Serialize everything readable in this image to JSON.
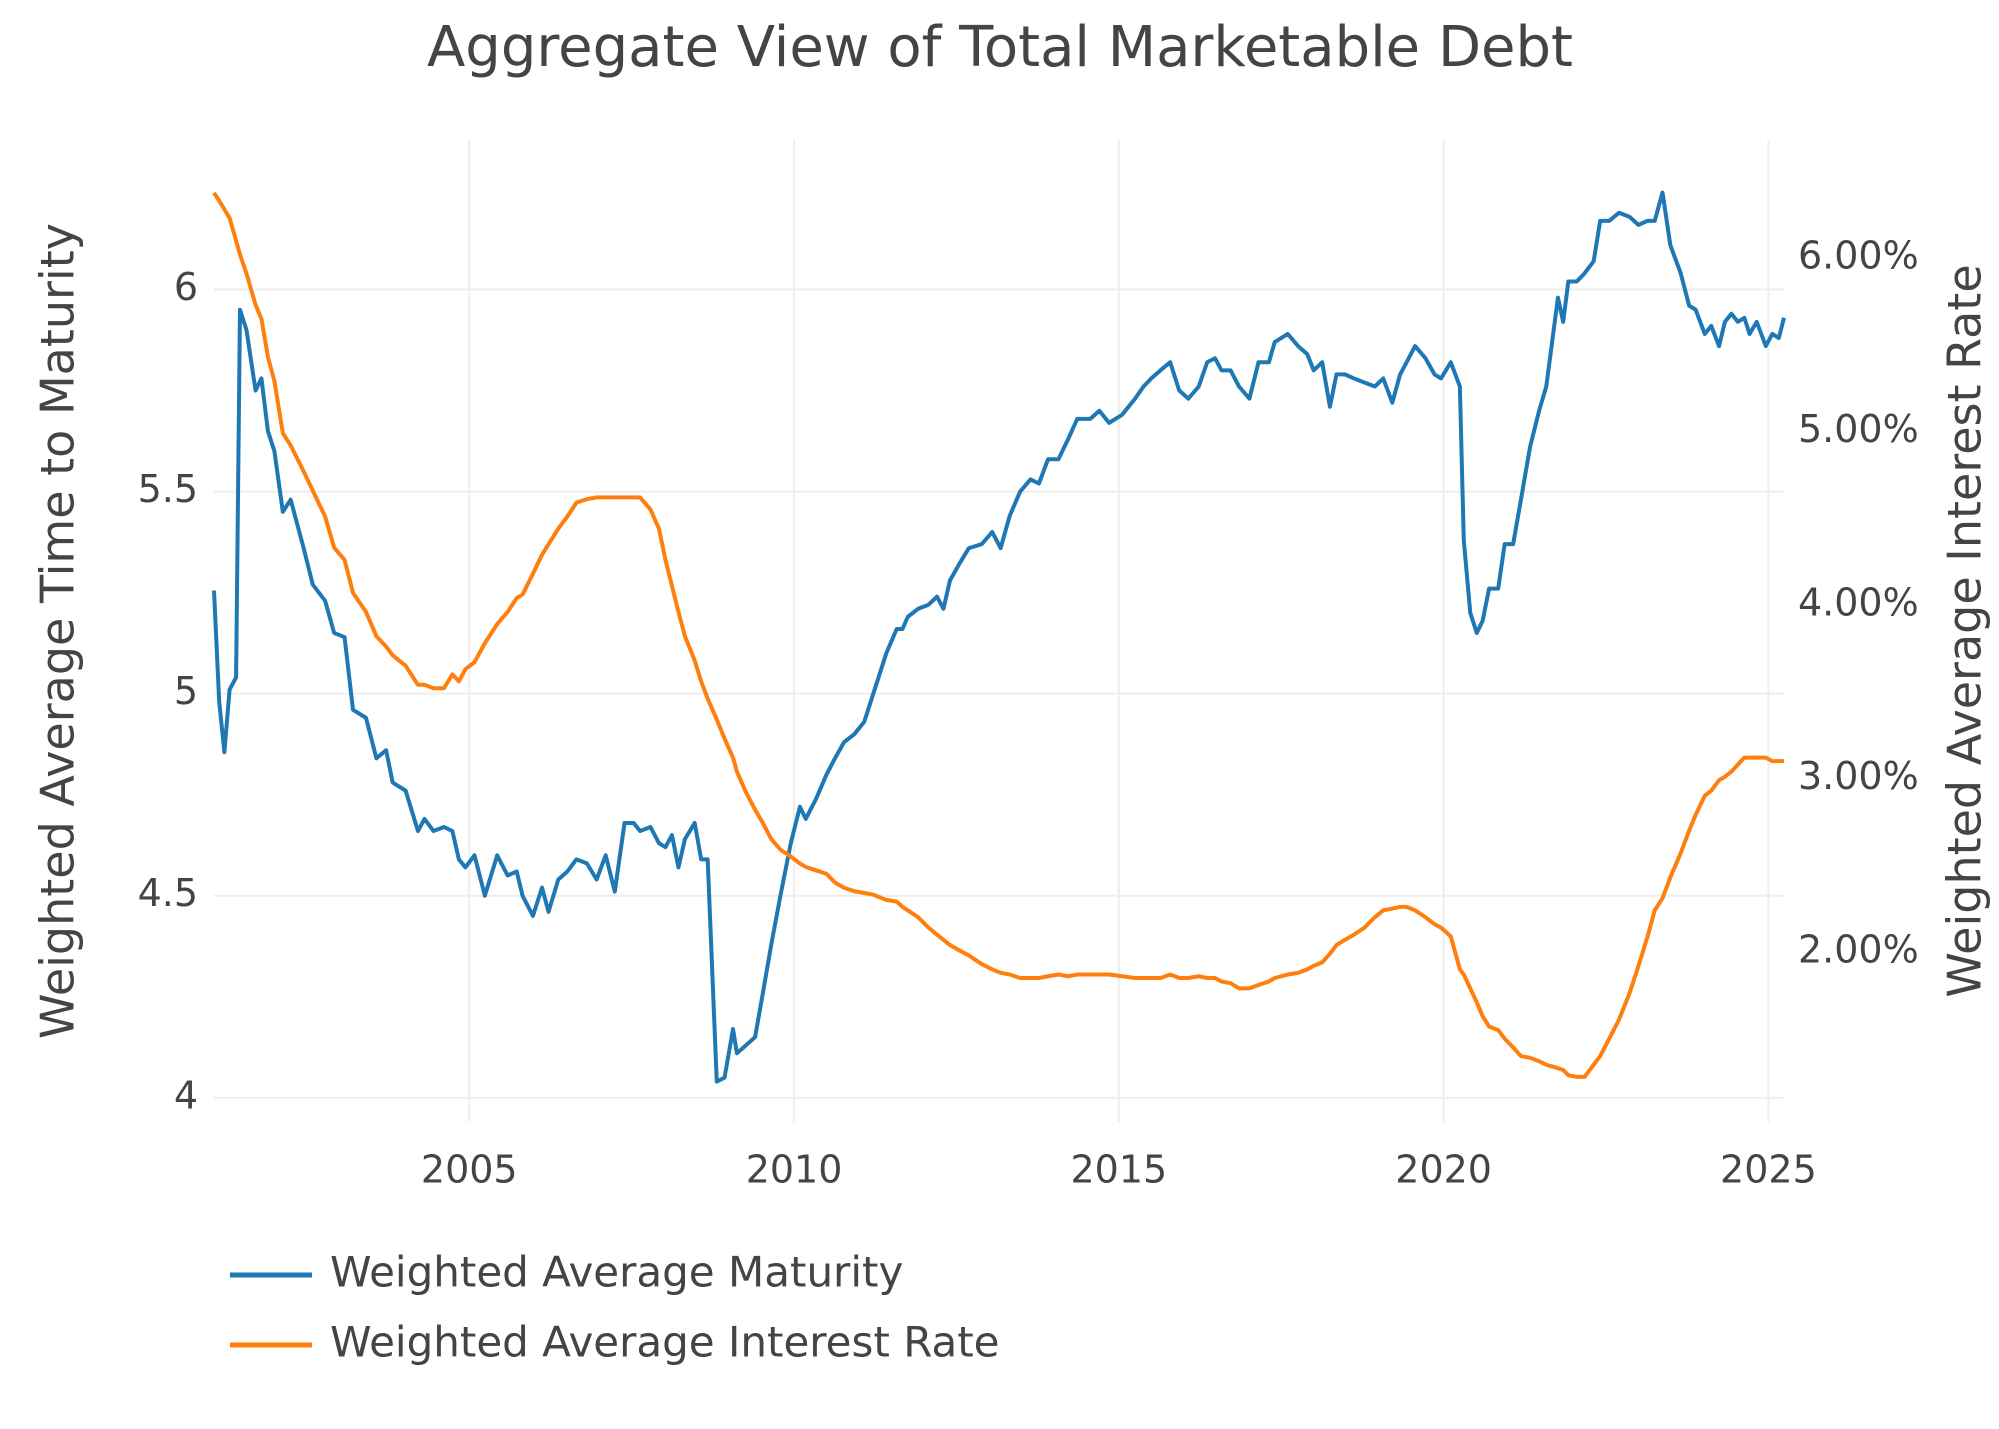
{
  "chart_data": {
    "type": "line",
    "title": "Aggregate View of Total Marketable Debt",
    "y_label": "Weighted Average Time to Maturity",
    "y2_label": "Weighted Average Interest Rate",
    "x": [
      2001.07,
      2001.15,
      2001.23,
      2001.31,
      2001.41,
      2001.47,
      2001.57,
      2001.71,
      2001.8,
      2001.9,
      2002.0,
      2002.13,
      2002.25,
      2002.45,
      2002.59,
      2002.78,
      2002.92,
      2003.08,
      2003.21,
      2003.41,
      2003.57,
      2003.72,
      2003.82,
      2004.02,
      2004.21,
      2004.31,
      2004.45,
      2004.61,
      2004.74,
      2004.84,
      2004.94,
      2005.08,
      2005.24,
      2005.43,
      2005.59,
      2005.73,
      2005.82,
      2005.98,
      2006.12,
      2006.22,
      2006.37,
      2006.51,
      2006.65,
      2006.81,
      2006.96,
      2007.1,
      2007.24,
      2007.39,
      2007.53,
      2007.63,
      2007.79,
      2007.92,
      2008.02,
      2008.12,
      2008.22,
      2008.32,
      2008.47,
      2008.57,
      2008.67,
      2008.81,
      2008.93,
      2009.06,
      2009.12,
      2009.26,
      2009.4,
      2009.51,
      2009.65,
      2009.79,
      2009.95,
      2010.09,
      2010.18,
      2010.34,
      2010.5,
      2010.63,
      2010.77,
      2010.93,
      2011.08,
      2011.22,
      2011.42,
      2011.58,
      2011.67,
      2011.75,
      2011.91,
      2012.07,
      2012.2,
      2012.3,
      2012.4,
      2012.54,
      2012.69,
      2012.89,
      2013.05,
      2013.18,
      2013.32,
      2013.48,
      2013.64,
      2013.77,
      2013.91,
      2014.07,
      2014.22,
      2014.36,
      2014.56,
      2014.7,
      2014.85,
      2015.05,
      2015.25,
      2015.38,
      2015.5,
      2015.64,
      2015.79,
      2015.93,
      2016.07,
      2016.23,
      2016.36,
      2016.48,
      2016.58,
      2016.72,
      2016.85,
      2017.01,
      2017.15,
      2017.31,
      2017.4,
      2017.6,
      2017.76,
      2017.9,
      2018.0,
      2018.13,
      2018.25,
      2018.35,
      2018.48,
      2018.62,
      2018.78,
      2018.94,
      2019.07,
      2019.21,
      2019.33,
      2019.43,
      2019.56,
      2019.72,
      2019.86,
      2019.96,
      2020.11,
      2020.25,
      2020.31,
      2020.41,
      2020.51,
      2020.6,
      2020.7,
      2020.84,
      2020.94,
      2021.07,
      2021.19,
      2021.33,
      2021.47,
      2021.58,
      2021.76,
      2021.84,
      2021.92,
      2022.05,
      2022.17,
      2022.31,
      2022.41,
      2022.55,
      2022.7,
      2022.86,
      2023.0,
      2023.14,
      2023.25,
      2023.37,
      2023.49,
      2023.65,
      2023.78,
      2023.88,
      2024.02,
      2024.12,
      2024.24,
      2024.33,
      2024.43,
      2024.53,
      2024.63,
      2024.71,
      2024.82,
      2024.96,
      2025.06,
      2025.16,
      2025.24
    ],
    "series": [
      {
        "name": "Weighted Average Maturity",
        "color": "#1f77b4",
        "axis": "y",
        "values": [
          5.255,
          4.98,
          4.855,
          5.01,
          5.04,
          5.95,
          5.9,
          5.75,
          5.78,
          5.65,
          5.6,
          5.45,
          5.48,
          5.36,
          5.27,
          5.23,
          5.15,
          5.14,
          4.96,
          4.94,
          4.84,
          4.86,
          4.78,
          4.76,
          4.66,
          4.69,
          4.66,
          4.67,
          4.66,
          4.59,
          4.57,
          4.6,
          4.5,
          4.6,
          4.55,
          4.56,
          4.5,
          4.45,
          4.52,
          4.46,
          4.54,
          4.56,
          4.59,
          4.58,
          4.54,
          4.6,
          4.51,
          4.68,
          4.68,
          4.66,
          4.67,
          4.63,
          4.62,
          4.65,
          4.57,
          4.64,
          4.68,
          4.59,
          4.59,
          4.04,
          4.05,
          4.17,
          4.11,
          4.13,
          4.15,
          4.25,
          4.38,
          4.5,
          4.63,
          4.72,
          4.69,
          4.74,
          4.8,
          4.84,
          4.88,
          4.9,
          4.93,
          5.0,
          5.1,
          5.16,
          5.16,
          5.19,
          5.21,
          5.22,
          5.24,
          5.21,
          5.28,
          5.32,
          5.36,
          5.37,
          5.4,
          5.36,
          5.44,
          5.5,
          5.53,
          5.52,
          5.58,
          5.58,
          5.63,
          5.68,
          5.68,
          5.7,
          5.67,
          5.69,
          5.73,
          5.76,
          5.78,
          5.8,
          5.82,
          5.75,
          5.73,
          5.76,
          5.82,
          5.83,
          5.8,
          5.8,
          5.76,
          5.73,
          5.82,
          5.82,
          5.87,
          5.89,
          5.86,
          5.84,
          5.8,
          5.82,
          5.71,
          5.79,
          5.79,
          5.78,
          5.77,
          5.76,
          5.78,
          5.72,
          5.79,
          5.82,
          5.86,
          5.83,
          5.79,
          5.78,
          5.82,
          5.76,
          5.38,
          5.2,
          5.15,
          5.18,
          5.26,
          5.26,
          5.37,
          5.37,
          5.48,
          5.61,
          5.7,
          5.76,
          5.98,
          5.92,
          6.02,
          6.02,
          6.04,
          6.07,
          6.17,
          6.17,
          6.19,
          6.18,
          6.16,
          6.17,
          6.17,
          6.24,
          6.11,
          6.04,
          5.96,
          5.95,
          5.89,
          5.91,
          5.86,
          5.92,
          5.94,
          5.92,
          5.93,
          5.89,
          5.92,
          5.86,
          5.89,
          5.88,
          5.93
        ]
      },
      {
        "name": "Weighted Average Interest Rate",
        "color": "#ff7f0e",
        "axis": "y2",
        "values": [
          6.375,
          6.33,
          6.28,
          6.23,
          6.1,
          6.02,
          5.91,
          5.73,
          5.65,
          5.43,
          5.29,
          4.99,
          4.92,
          4.77,
          4.66,
          4.51,
          4.33,
          4.26,
          4.07,
          3.96,
          3.82,
          3.76,
          3.71,
          3.65,
          3.54,
          3.54,
          3.52,
          3.52,
          3.6,
          3.56,
          3.63,
          3.67,
          3.78,
          3.89,
          3.96,
          4.04,
          4.06,
          4.18,
          4.29,
          4.35,
          4.44,
          4.51,
          4.59,
          4.61,
          4.62,
          4.62,
          4.62,
          4.62,
          4.62,
          4.62,
          4.55,
          4.44,
          4.26,
          4.11,
          3.96,
          3.82,
          3.68,
          3.56,
          3.46,
          3.34,
          3.23,
          3.12,
          3.04,
          2.92,
          2.82,
          2.75,
          2.65,
          2.59,
          2.55,
          2.51,
          2.49,
          2.47,
          2.45,
          2.4,
          2.37,
          2.35,
          2.34,
          2.33,
          2.3,
          2.29,
          2.26,
          2.24,
          2.2,
          2.14,
          2.1,
          2.07,
          2.04,
          2.01,
          1.98,
          1.93,
          1.9,
          1.88,
          1.87,
          1.85,
          1.85,
          1.85,
          1.86,
          1.87,
          1.86,
          1.87,
          1.87,
          1.87,
          1.87,
          1.86,
          1.85,
          1.85,
          1.85,
          1.85,
          1.87,
          1.85,
          1.85,
          1.86,
          1.85,
          1.85,
          1.83,
          1.82,
          1.79,
          1.79,
          1.81,
          1.83,
          1.85,
          1.87,
          1.88,
          1.9,
          1.92,
          1.94,
          1.99,
          2.04,
          2.07,
          2.1,
          2.14,
          2.2,
          2.24,
          2.25,
          2.26,
          2.26,
          2.24,
          2.2,
          2.16,
          2.14,
          2.09,
          1.9,
          1.87,
          1.79,
          1.71,
          1.63,
          1.57,
          1.55,
          1.5,
          1.45,
          1.4,
          1.39,
          1.37,
          1.35,
          1.33,
          1.32,
          1.29,
          1.28,
          1.28,
          1.35,
          1.4,
          1.5,
          1.61,
          1.76,
          1.92,
          2.09,
          2.24,
          2.31,
          2.43,
          2.57,
          2.7,
          2.79,
          2.9,
          2.93,
          2.99,
          3.01,
          3.04,
          3.08,
          3.12,
          3.12,
          3.12,
          3.12,
          3.1,
          3.1,
          3.1
        ]
      }
    ],
    "xlim": [
      2001.07,
      2025.24
    ],
    "xticks": [
      2005,
      2010,
      2015,
      2020,
      2025
    ],
    "ylim": [
      3.94,
      6.37
    ],
    "yticks": [
      4,
      4.5,
      5,
      5.5,
      6
    ],
    "y2lim": [
      1.02,
      6.68
    ],
    "y2ticks": [
      {
        "value": 2,
        "label": "2.00%"
      },
      {
        "value": 3,
        "label": "3.00%"
      },
      {
        "value": 4,
        "label": "4.00%"
      },
      {
        "value": 5,
        "label": "5.00%"
      },
      {
        "value": 6,
        "label": "6.00%"
      }
    ],
    "grid": true,
    "legend": "bottom-left"
  }
}
